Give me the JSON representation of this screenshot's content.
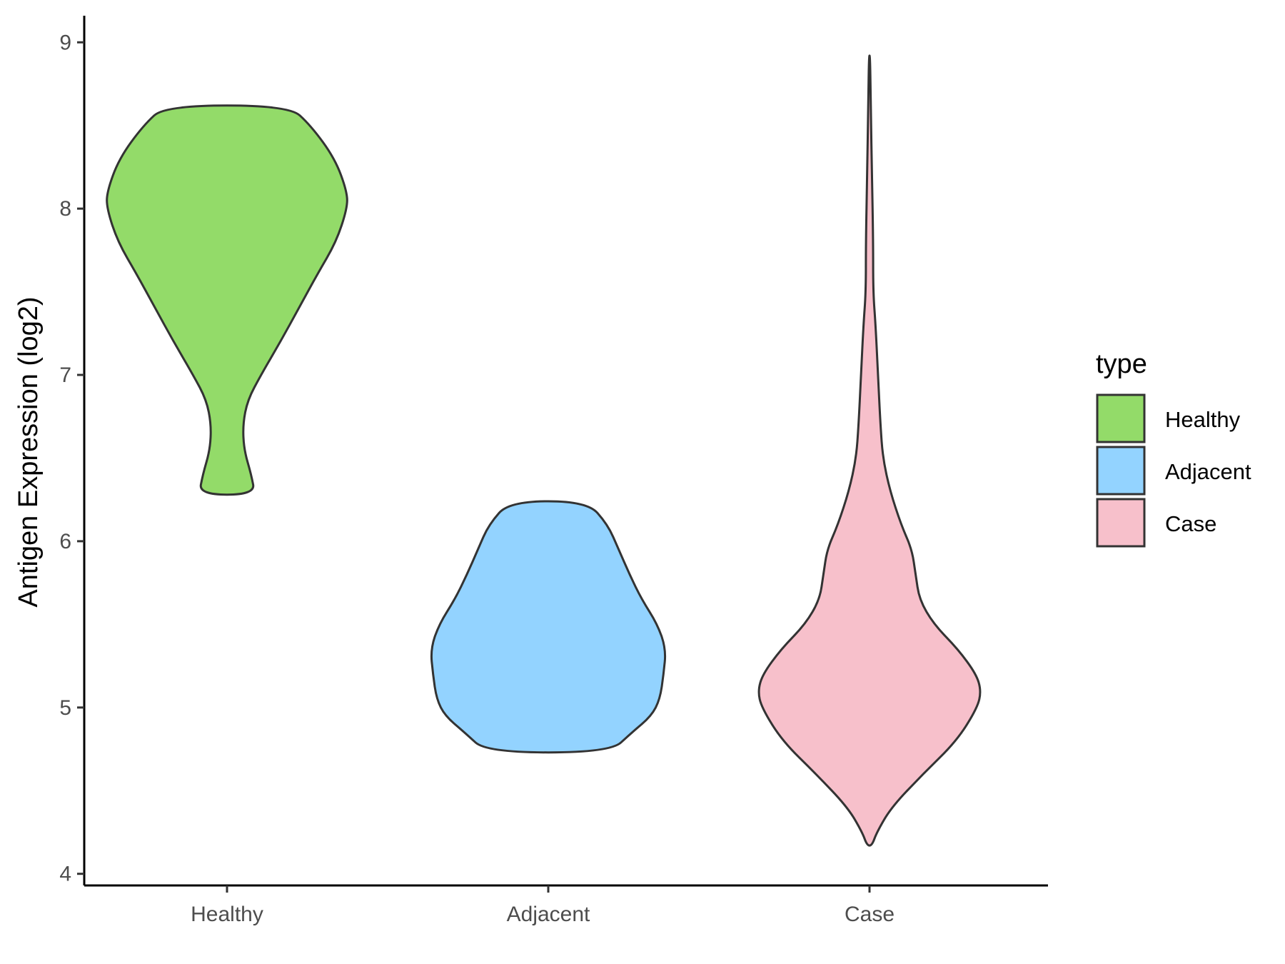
{
  "chart_data": {
    "type": "violin",
    "xlabel": "",
    "ylabel": "Antigen Expression (log2)",
    "ylim": [
      3.93,
      9.16
    ],
    "yticks": [
      4,
      5,
      6,
      7,
      8,
      9
    ],
    "categories": [
      "Healthy",
      "Adjacent",
      "Case"
    ],
    "legend": {
      "title": "type",
      "position": "right",
      "entries": [
        "Healthy",
        "Adjacent",
        "Case"
      ]
    },
    "colors": {
      "Healthy": "#93DB69",
      "Adjacent": "#93D3FF",
      "Case": "#F7C0CB",
      "outline": "#333333"
    },
    "series": [
      {
        "name": "Healthy",
        "min": 6.28,
        "max": 8.62,
        "density_profile": [
          [
            6.28,
            0.23
          ],
          [
            6.4,
            0.2
          ],
          [
            6.55,
            0.14
          ],
          [
            6.7,
            0.13
          ],
          [
            6.85,
            0.17
          ],
          [
            7.0,
            0.28
          ],
          [
            7.2,
            0.44
          ],
          [
            7.4,
            0.59
          ],
          [
            7.6,
            0.74
          ],
          [
            7.8,
            0.9
          ],
          [
            8.0,
            0.99
          ],
          [
            8.1,
            0.99
          ],
          [
            8.3,
            0.89
          ],
          [
            8.5,
            0.69
          ],
          [
            8.62,
            0.51
          ]
        ]
      },
      {
        "name": "Adjacent",
        "min": 4.73,
        "max": 6.24,
        "density_profile": [
          [
            4.73,
            0.51
          ],
          [
            4.85,
            0.69
          ],
          [
            4.95,
            0.85
          ],
          [
            5.05,
            0.92
          ],
          [
            5.2,
            0.95
          ],
          [
            5.35,
            0.97
          ],
          [
            5.5,
            0.9
          ],
          [
            5.65,
            0.77
          ],
          [
            5.8,
            0.67
          ],
          [
            5.95,
            0.58
          ],
          [
            6.1,
            0.49
          ],
          [
            6.24,
            0.32
          ]
        ]
      },
      {
        "name": "Case",
        "min": 4.17,
        "max": 8.92,
        "density_profile": [
          [
            4.17,
            0.02
          ],
          [
            4.25,
            0.06
          ],
          [
            4.4,
            0.18
          ],
          [
            4.6,
            0.44
          ],
          [
            4.8,
            0.72
          ],
          [
            5.0,
            0.89
          ],
          [
            5.1,
            0.92
          ],
          [
            5.2,
            0.88
          ],
          [
            5.35,
            0.73
          ],
          [
            5.5,
            0.53
          ],
          [
            5.65,
            0.41
          ],
          [
            5.8,
            0.38
          ],
          [
            5.95,
            0.35
          ],
          [
            6.1,
            0.26
          ],
          [
            6.3,
            0.17
          ],
          [
            6.5,
            0.11
          ],
          [
            6.7,
            0.09
          ],
          [
            7.0,
            0.07
          ],
          [
            7.3,
            0.05
          ],
          [
            7.5,
            0.03
          ],
          [
            7.8,
            0.03
          ],
          [
            8.2,
            0.02
          ],
          [
            8.6,
            0.01
          ],
          [
            8.92,
            0.005
          ]
        ]
      }
    ]
  }
}
